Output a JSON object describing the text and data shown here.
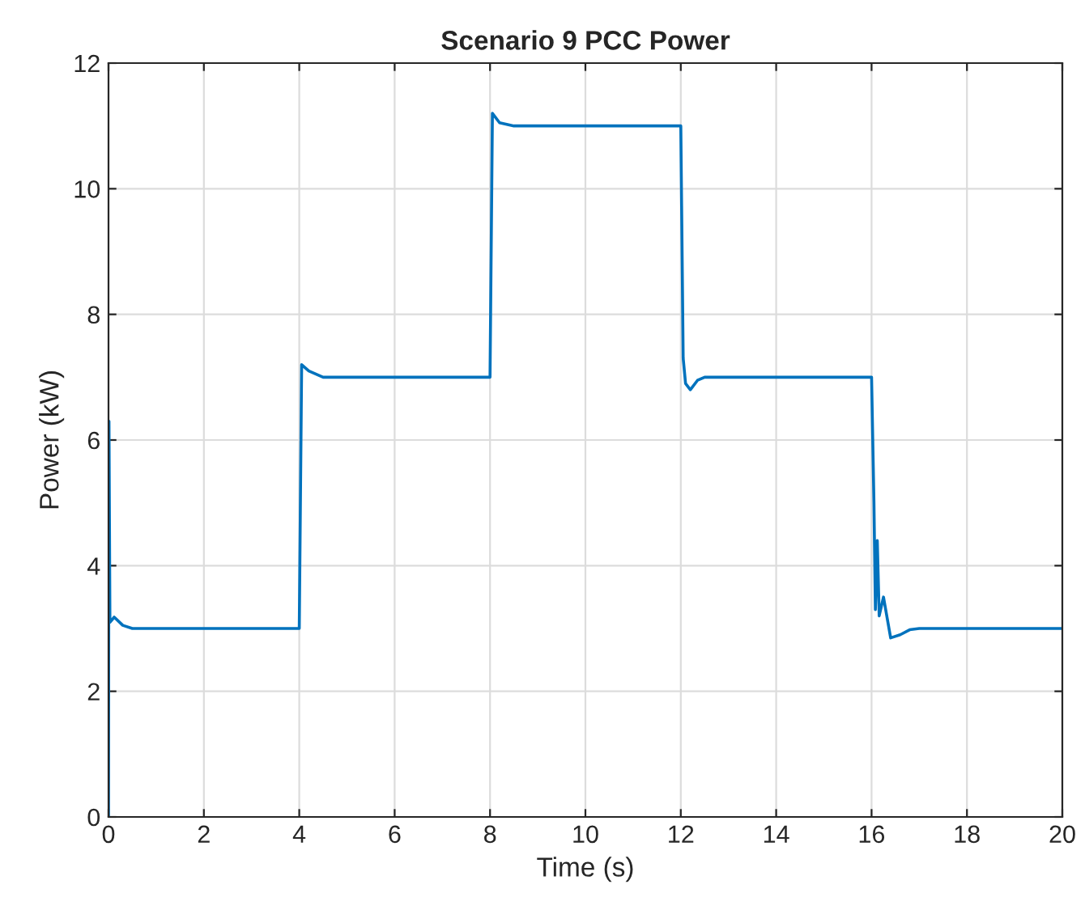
{
  "chart_data": {
    "type": "line",
    "title": "Scenario 9 PCC Power",
    "xlabel": "Time (s)",
    "ylabel": "Power (kW)",
    "x": [
      0,
      0.01,
      0.03,
      0.12,
      0.3,
      0.5,
      4.0,
      4.05,
      4.2,
      4.5,
      8.0,
      8.05,
      8.2,
      8.5,
      12.0,
      12.05,
      12.1,
      12.2,
      12.35,
      12.5,
      16.0,
      16.05,
      16.08,
      16.12,
      16.16,
      16.25,
      16.4,
      16.6,
      16.8,
      17.0,
      20.0
    ],
    "series": [
      {
        "color": "#0072bd",
        "values": [
          0,
          6.3,
          3.1,
          3.18,
          3.05,
          3.0,
          3.0,
          7.2,
          7.1,
          7.0,
          7.0,
          11.2,
          11.05,
          11.0,
          11.0,
          7.3,
          6.9,
          6.8,
          6.95,
          7.0,
          7.0,
          5.0,
          3.3,
          4.4,
          3.2,
          3.5,
          2.85,
          2.9,
          2.98,
          3.0,
          3.0
        ]
      }
    ],
    "xlim": [
      0,
      20
    ],
    "xticks": [
      0,
      2,
      4,
      6,
      8,
      10,
      12,
      14,
      16,
      18,
      20
    ],
    "ylim": [
      0,
      12
    ],
    "yticks": [
      0,
      2,
      4,
      6,
      8,
      10,
      12
    ],
    "grid": true
  }
}
